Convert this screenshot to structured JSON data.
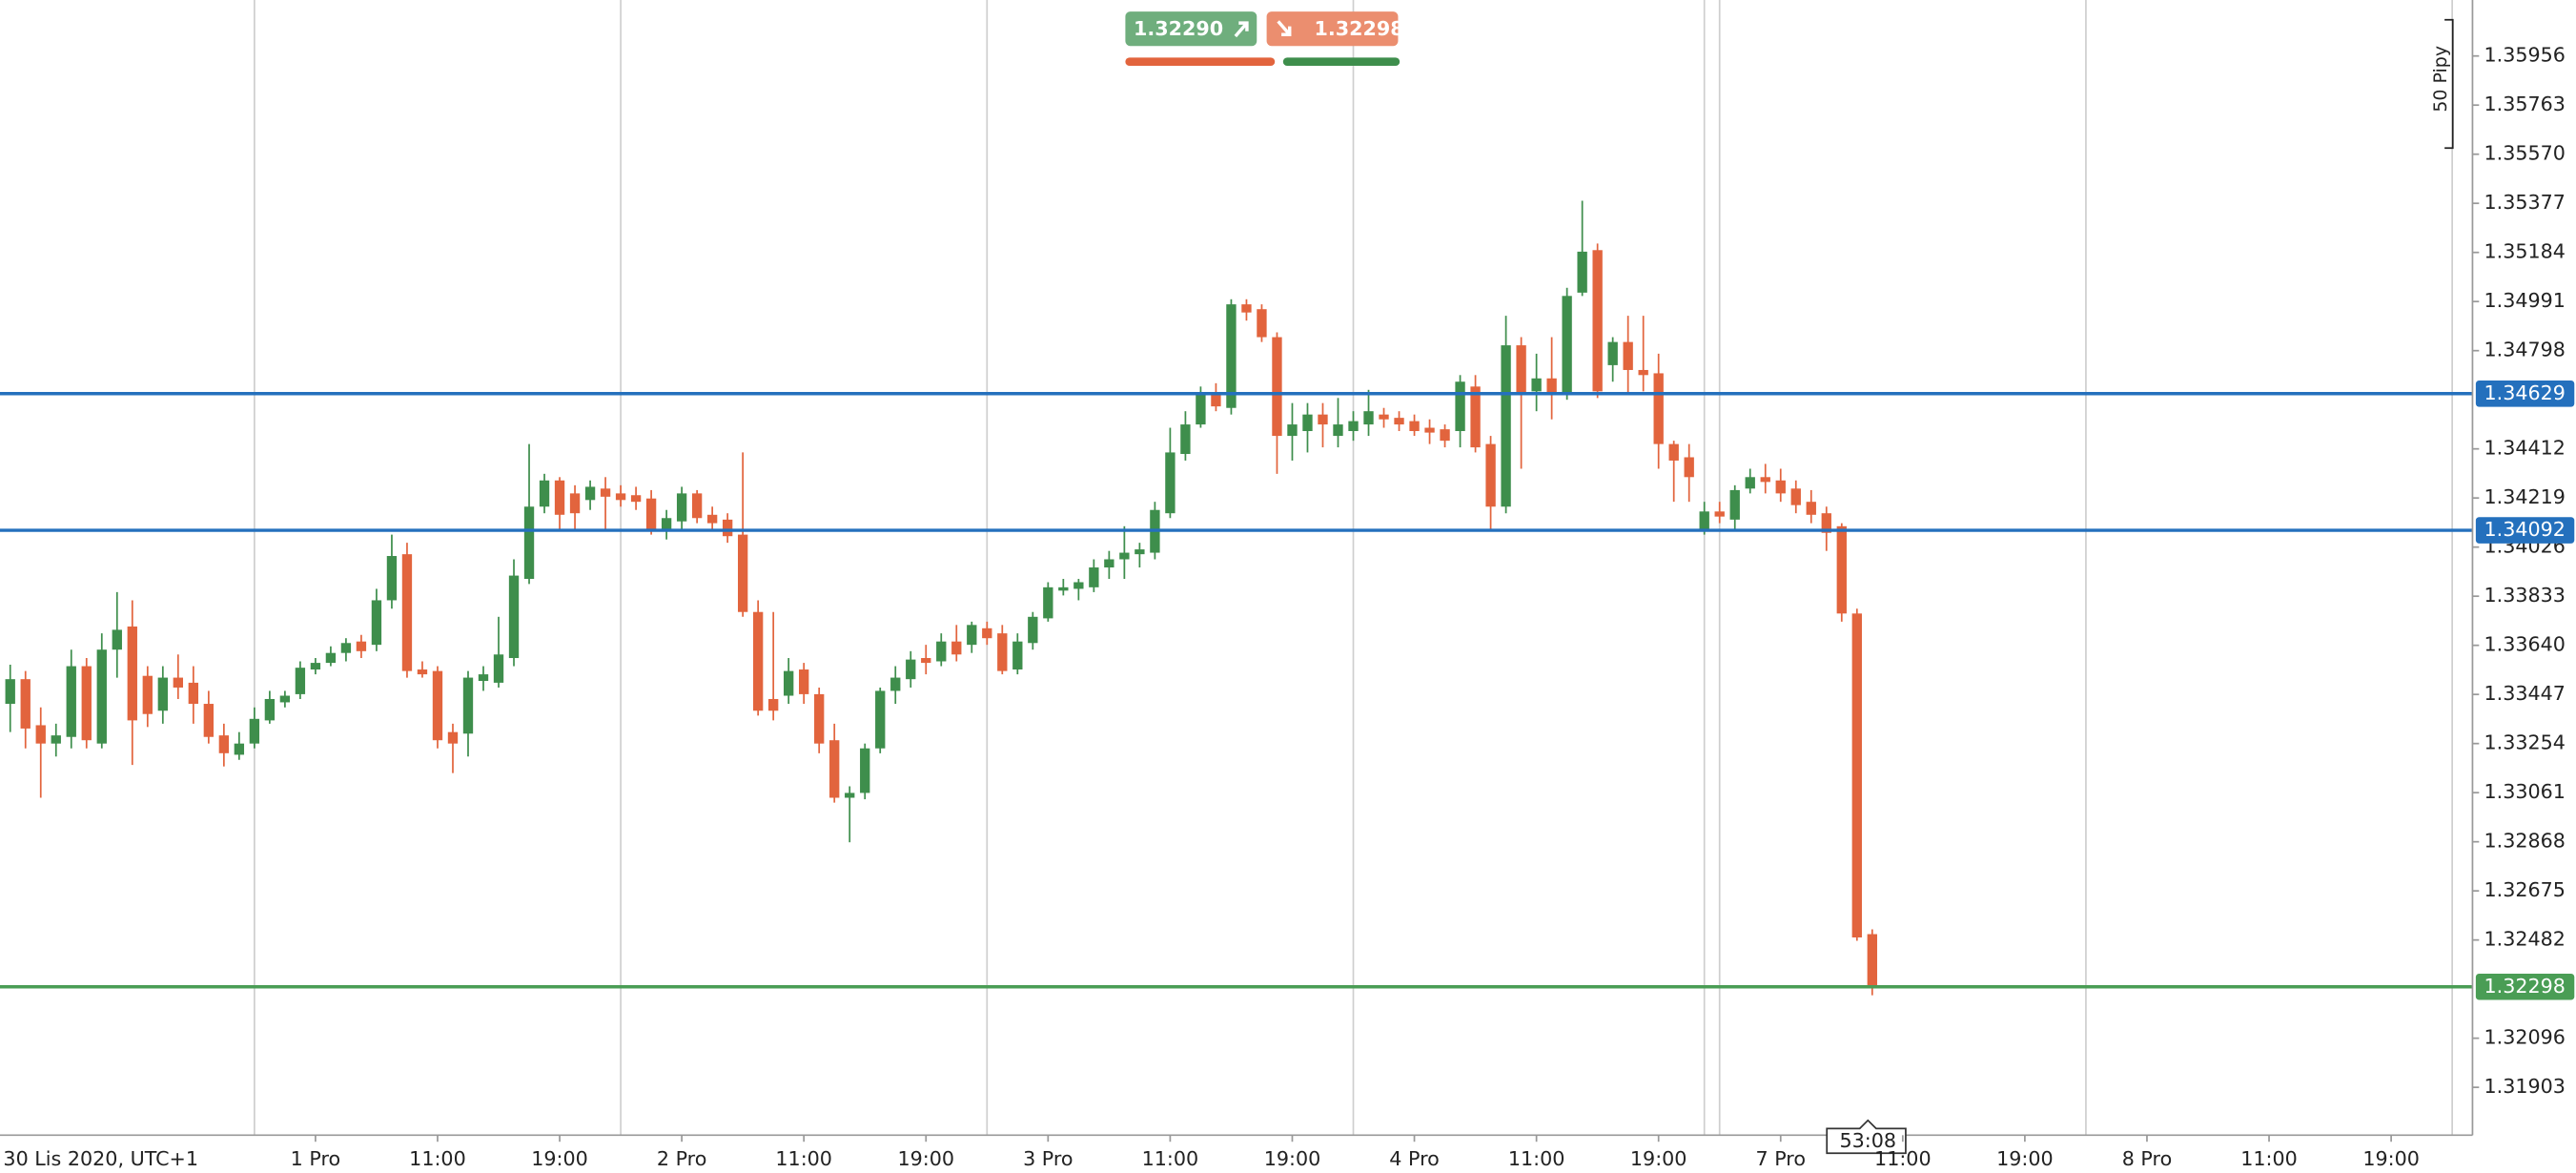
{
  "chart_data": {
    "type": "candlestick",
    "x_start_label": "30 Lis 2020, UTC+1",
    "xlim": [
      6.33,
      168.33
    ],
    "xticks": [
      {
        "value": 27,
        "label": "1 Pro"
      },
      {
        "value": 35,
        "label": "11:00"
      },
      {
        "value": 43,
        "label": "19:00"
      },
      {
        "value": 51,
        "label": "2 Pro"
      },
      {
        "value": 59,
        "label": "11:00"
      },
      {
        "value": 67,
        "label": "19:00"
      },
      {
        "value": 75,
        "label": "3 Pro"
      },
      {
        "value": 83,
        "label": "11:00"
      },
      {
        "value": 91,
        "label": "19:00"
      },
      {
        "value": 99,
        "label": "4 Pro"
      },
      {
        "value": 107,
        "label": "11:00"
      },
      {
        "value": 115,
        "label": "19:00"
      },
      {
        "value": 123,
        "label": "7 Pro"
      },
      {
        "value": 131,
        "label": "11:00"
      },
      {
        "value": 139,
        "label": "19:00"
      },
      {
        "value": 147,
        "label": "8 Pro"
      },
      {
        "value": 155,
        "label": "11:00"
      },
      {
        "value": 163,
        "label": "19:00"
      }
    ],
    "xgrid": [
      23,
      47,
      71,
      95,
      118,
      119,
      143,
      167
    ],
    "ylim": [
      1.31715,
      1.36176
    ],
    "yticks": [
      1.35956,
      1.35763,
      {
        "value": 1.3557,
        "label": "1.35570"
      },
      1.35377,
      1.35184,
      1.34991,
      1.34798,
      1.34412,
      1.34219,
      1.34026,
      1.33833,
      {
        "value": 1.3364,
        "label": "1.33640"
      },
      1.33447,
      1.33254,
      1.33061,
      1.32868,
      1.32675,
      1.32482,
      1.32096,
      1.31903
    ],
    "up_color": "#3e8e4c",
    "down_color": "#e2643d",
    "levels": [
      1.34629,
      1.34092
    ],
    "level_color": "#2470bd",
    "last_price": 1.32298,
    "last_color": "#4a9d55",
    "bid": {
      "value": 1.3229,
      "label": "1.32290"
    },
    "ask": 1.32298,
    "scale_label": "50 Pipy",
    "countdown": "53:08",
    "x": [
      7,
      8,
      9,
      10,
      11,
      12,
      13,
      14,
      15,
      16,
      17,
      18,
      19,
      20,
      21,
      22,
      23,
      24,
      25,
      26,
      27,
      28,
      29,
      30,
      31,
      32,
      33,
      34,
      35,
      36,
      37,
      38,
      39,
      40,
      41,
      42,
      43,
      44,
      45,
      46,
      47,
      48,
      49,
      50,
      51,
      52,
      53,
      54,
      55,
      56,
      57,
      58,
      59,
      60,
      61,
      62,
      63,
      64,
      65,
      66,
      67,
      68,
      69,
      70,
      71,
      72,
      73,
      74,
      75,
      76,
      77,
      78,
      79,
      80,
      81,
      82,
      83,
      84,
      85,
      86,
      87,
      88,
      89,
      90,
      91,
      92,
      93,
      94,
      95,
      96,
      97,
      98,
      99,
      100,
      101,
      102,
      103,
      104,
      105,
      106,
      107,
      108,
      109,
      110,
      111,
      112,
      113,
      114,
      115,
      116,
      117,
      118,
      119,
      120,
      121,
      122,
      123,
      124,
      125,
      126,
      127,
      128,
      129
    ],
    "ohlc": [
      [
        1.3341,
        1.33564,
        1.33299,
        1.33507
      ],
      [
        1.33507,
        1.33539,
        1.33235,
        1.33313
      ],
      [
        1.33326,
        1.33396,
        1.33041,
        1.33254
      ],
      [
        1.33254,
        1.33332,
        1.33203,
        1.33286
      ],
      [
        1.3328,
        1.33623,
        1.33235,
        1.33558
      ],
      [
        1.33558,
        1.3359,
        1.33235,
        1.33267
      ],
      [
        1.33254,
        1.33687,
        1.33235,
        1.33623
      ],
      [
        1.33623,
        1.33849,
        1.33513,
        1.33701
      ],
      [
        1.33714,
        1.33817,
        1.3317,
        1.33345
      ],
      [
        1.3352,
        1.33558,
        1.33319,
        1.3337
      ],
      [
        1.33383,
        1.33558,
        1.33332,
        1.33513
      ],
      [
        1.33513,
        1.33604,
        1.33429,
        1.33474
      ],
      [
        1.33493,
        1.33558,
        1.33332,
        1.3341
      ],
      [
        1.3341,
        1.33461,
        1.33254,
        1.3328
      ],
      [
        1.33286,
        1.33332,
        1.33164,
        1.33216
      ],
      [
        1.3321,
        1.33299,
        1.3319,
        1.33254
      ],
      [
        1.33254,
        1.33396,
        1.33235,
        1.33351
      ],
      [
        1.33345,
        1.33461,
        1.33332,
        1.33429
      ],
      [
        1.33416,
        1.33461,
        1.33396,
        1.33442
      ],
      [
        1.33448,
        1.33577,
        1.33429,
        1.33552
      ],
      [
        1.33545,
        1.3359,
        1.33526,
        1.33571
      ],
      [
        1.33571,
        1.33636,
        1.33558,
        1.3361
      ],
      [
        1.3361,
        1.33668,
        1.33577,
        1.33649
      ],
      [
        1.33655,
        1.33681,
        1.3359,
        1.33617
      ],
      [
        1.33642,
        1.33862,
        1.33617,
        1.33817
      ],
      [
        1.33817,
        1.34075,
        1.33784,
        1.33991
      ],
      [
        1.33998,
        1.34043,
        1.33513,
        1.33539
      ],
      [
        1.33545,
        1.33577,
        1.33513,
        1.33526
      ],
      [
        1.33539,
        1.33558,
        1.33235,
        1.33267
      ],
      [
        1.33299,
        1.33332,
        1.33138,
        1.33254
      ],
      [
        1.33293,
        1.33539,
        1.33203,
        1.33513
      ],
      [
        1.335,
        1.33558,
        1.33461,
        1.33526
      ],
      [
        1.33493,
        1.33752,
        1.33474,
        1.33604
      ],
      [
        1.3359,
        1.33978,
        1.33558,
        1.33914
      ],
      [
        1.33901,
        1.34431,
        1.33881,
        1.34185
      ],
      [
        1.34185,
        1.34314,
        1.34159,
        1.34288
      ],
      [
        1.34288,
        1.34301,
        1.34095,
        1.34153
      ],
      [
        1.34237,
        1.34269,
        1.34095,
        1.34159
      ],
      [
        1.34211,
        1.34288,
        1.34172,
        1.34263
      ],
      [
        1.34256,
        1.34301,
        1.34095,
        1.34224
      ],
      [
        1.34237,
        1.34269,
        1.34185,
        1.34211
      ],
      [
        1.3423,
        1.34263,
        1.34172,
        1.34204
      ],
      [
        1.34217,
        1.3425,
        1.34075,
        1.34088
      ],
      [
        1.34095,
        1.34172,
        1.34056,
        1.3414
      ],
      [
        1.34127,
        1.34263,
        1.34095,
        1.34237
      ],
      [
        1.34237,
        1.3425,
        1.3412,
        1.3414
      ],
      [
        1.34153,
        1.34185,
        1.34095,
        1.3412
      ],
      [
        1.34134,
        1.34159,
        1.34043,
        1.34069
      ],
      [
        1.34075,
        1.34398,
        1.33752,
        1.33771
      ],
      [
        1.33771,
        1.33817,
        1.33364,
        1.33383
      ],
      [
        1.33429,
        1.33771,
        1.33345,
        1.33383
      ],
      [
        1.33442,
        1.3359,
        1.3341,
        1.33539
      ],
      [
        1.33545,
        1.33571,
        1.3341,
        1.33448
      ],
      [
        1.33448,
        1.33474,
        1.33216,
        1.33254
      ],
      [
        1.33267,
        1.33332,
        1.33022,
        1.33041
      ],
      [
        1.33041,
        1.33086,
        1.32866,
        1.3306
      ],
      [
        1.3306,
        1.33254,
        1.33035,
        1.33235
      ],
      [
        1.33235,
        1.33474,
        1.33216,
        1.33461
      ],
      [
        1.33461,
        1.33558,
        1.3341,
        1.33513
      ],
      [
        1.33507,
        1.33617,
        1.33474,
        1.33584
      ],
      [
        1.3359,
        1.33642,
        1.33526,
        1.33571
      ],
      [
        1.33577,
        1.33687,
        1.33558,
        1.33655
      ],
      [
        1.33655,
        1.3372,
        1.33577,
        1.33604
      ],
      [
        1.33642,
        1.33733,
        1.3361,
        1.3372
      ],
      [
        1.33707,
        1.33733,
        1.33642,
        1.33668
      ],
      [
        1.33687,
        1.3372,
        1.33526,
        1.33539
      ],
      [
        1.33545,
        1.33687,
        1.33526,
        1.33655
      ],
      [
        1.33649,
        1.33771,
        1.33623,
        1.33752
      ],
      [
        1.33746,
        1.33888,
        1.33733,
        1.33868
      ],
      [
        1.33855,
        1.33901,
        1.33836,
        1.33868
      ],
      [
        1.33862,
        1.33901,
        1.33817,
        1.33888
      ],
      [
        1.33868,
        1.33978,
        1.33849,
        1.33946
      ],
      [
        1.33946,
        1.34011,
        1.33901,
        1.33978
      ],
      [
        1.33978,
        1.34108,
        1.33901,
        1.34004
      ],
      [
        1.33998,
        1.34043,
        1.33946,
        1.34017
      ],
      [
        1.34004,
        1.34204,
        1.33978,
        1.34172
      ],
      [
        1.34159,
        1.34495,
        1.3414,
        1.34398
      ],
      [
        1.34392,
        1.3456,
        1.34366,
        1.34508
      ],
      [
        1.34508,
        1.34657,
        1.34495,
        1.34625
      ],
      [
        1.34631,
        1.3467,
        1.3456,
        1.34579
      ],
      [
        1.34573,
        1.35,
        1.34547,
        1.3498
      ],
      [
        1.3498,
        1.35,
        1.34916,
        1.34948
      ],
      [
        1.34961,
        1.3498,
        1.34832,
        1.34851
      ],
      [
        1.34851,
        1.3487,
        1.34314,
        1.34463
      ],
      [
        1.34463,
        1.34592,
        1.34366,
        1.34508
      ],
      [
        1.34482,
        1.34592,
        1.34398,
        1.34547
      ],
      [
        1.34547,
        1.34592,
        1.34418,
        1.34508
      ],
      [
        1.34463,
        1.34612,
        1.34418,
        1.34508
      ],
      [
        1.34482,
        1.3456,
        1.34444,
        1.34521
      ],
      [
        1.34508,
        1.34644,
        1.34463,
        1.3456
      ],
      [
        1.34547,
        1.34573,
        1.34495,
        1.34528
      ],
      [
        1.34534,
        1.3456,
        1.34482,
        1.34508
      ],
      [
        1.34521,
        1.34547,
        1.34463,
        1.34482
      ],
      [
        1.34495,
        1.34528,
        1.34431,
        1.34476
      ],
      [
        1.34489,
        1.34508,
        1.34418,
        1.34444
      ],
      [
        1.34482,
        1.34702,
        1.34418,
        1.34676
      ],
      [
        1.34657,
        1.34702,
        1.34398,
        1.34418
      ],
      [
        1.34431,
        1.34463,
        1.34095,
        1.34185
      ],
      [
        1.34185,
        1.34935,
        1.34159,
        1.34819
      ],
      [
        1.34819,
        1.34851,
        1.34334,
        1.34625
      ],
      [
        1.34638,
        1.34786,
        1.3456,
        1.34689
      ],
      [
        1.34689,
        1.34851,
        1.34528,
        1.34625
      ],
      [
        1.34625,
        1.35045,
        1.34605,
        1.35013
      ],
      [
        1.35026,
        1.35387,
        1.35013,
        1.35187
      ],
      [
        1.35193,
        1.35219,
        1.34612,
        1.34638
      ],
      [
        1.34741,
        1.34851,
        1.34676,
        1.34832
      ],
      [
        1.34832,
        1.34935,
        1.34625,
        1.34722
      ],
      [
        1.34722,
        1.34935,
        1.34638,
        1.34702
      ],
      [
        1.34709,
        1.34786,
        1.34334,
        1.34431
      ],
      [
        1.34431,
        1.34444,
        1.34204,
        1.34366
      ],
      [
        1.34379,
        1.34431,
        1.34204,
        1.34301
      ],
      [
        1.34095,
        1.34204,
        1.34075,
        1.34166
      ],
      [
        1.34166,
        1.34204,
        1.3412,
        1.34146
      ],
      [
        1.34134,
        1.34269,
        1.34095,
        1.3425
      ],
      [
        1.34256,
        1.34334,
        1.34237,
        1.34301
      ],
      [
        1.34301,
        1.34353,
        1.34237,
        1.34282
      ],
      [
        1.34288,
        1.34334,
        1.34204,
        1.34237
      ],
      [
        1.34256,
        1.34288,
        1.34159,
        1.34191
      ],
      [
        1.34204,
        1.3425,
        1.3412,
        1.34153
      ],
      [
        1.34159,
        1.34185,
        1.34011,
        1.34082
      ],
      [
        1.34108,
        1.3412,
        1.33733,
        1.33765
      ],
      [
        1.33765,
        1.33784,
        1.32479,
        1.32492
      ],
      [
        1.32505,
        1.32524,
        1.32265,
        1.32298
      ]
    ]
  }
}
